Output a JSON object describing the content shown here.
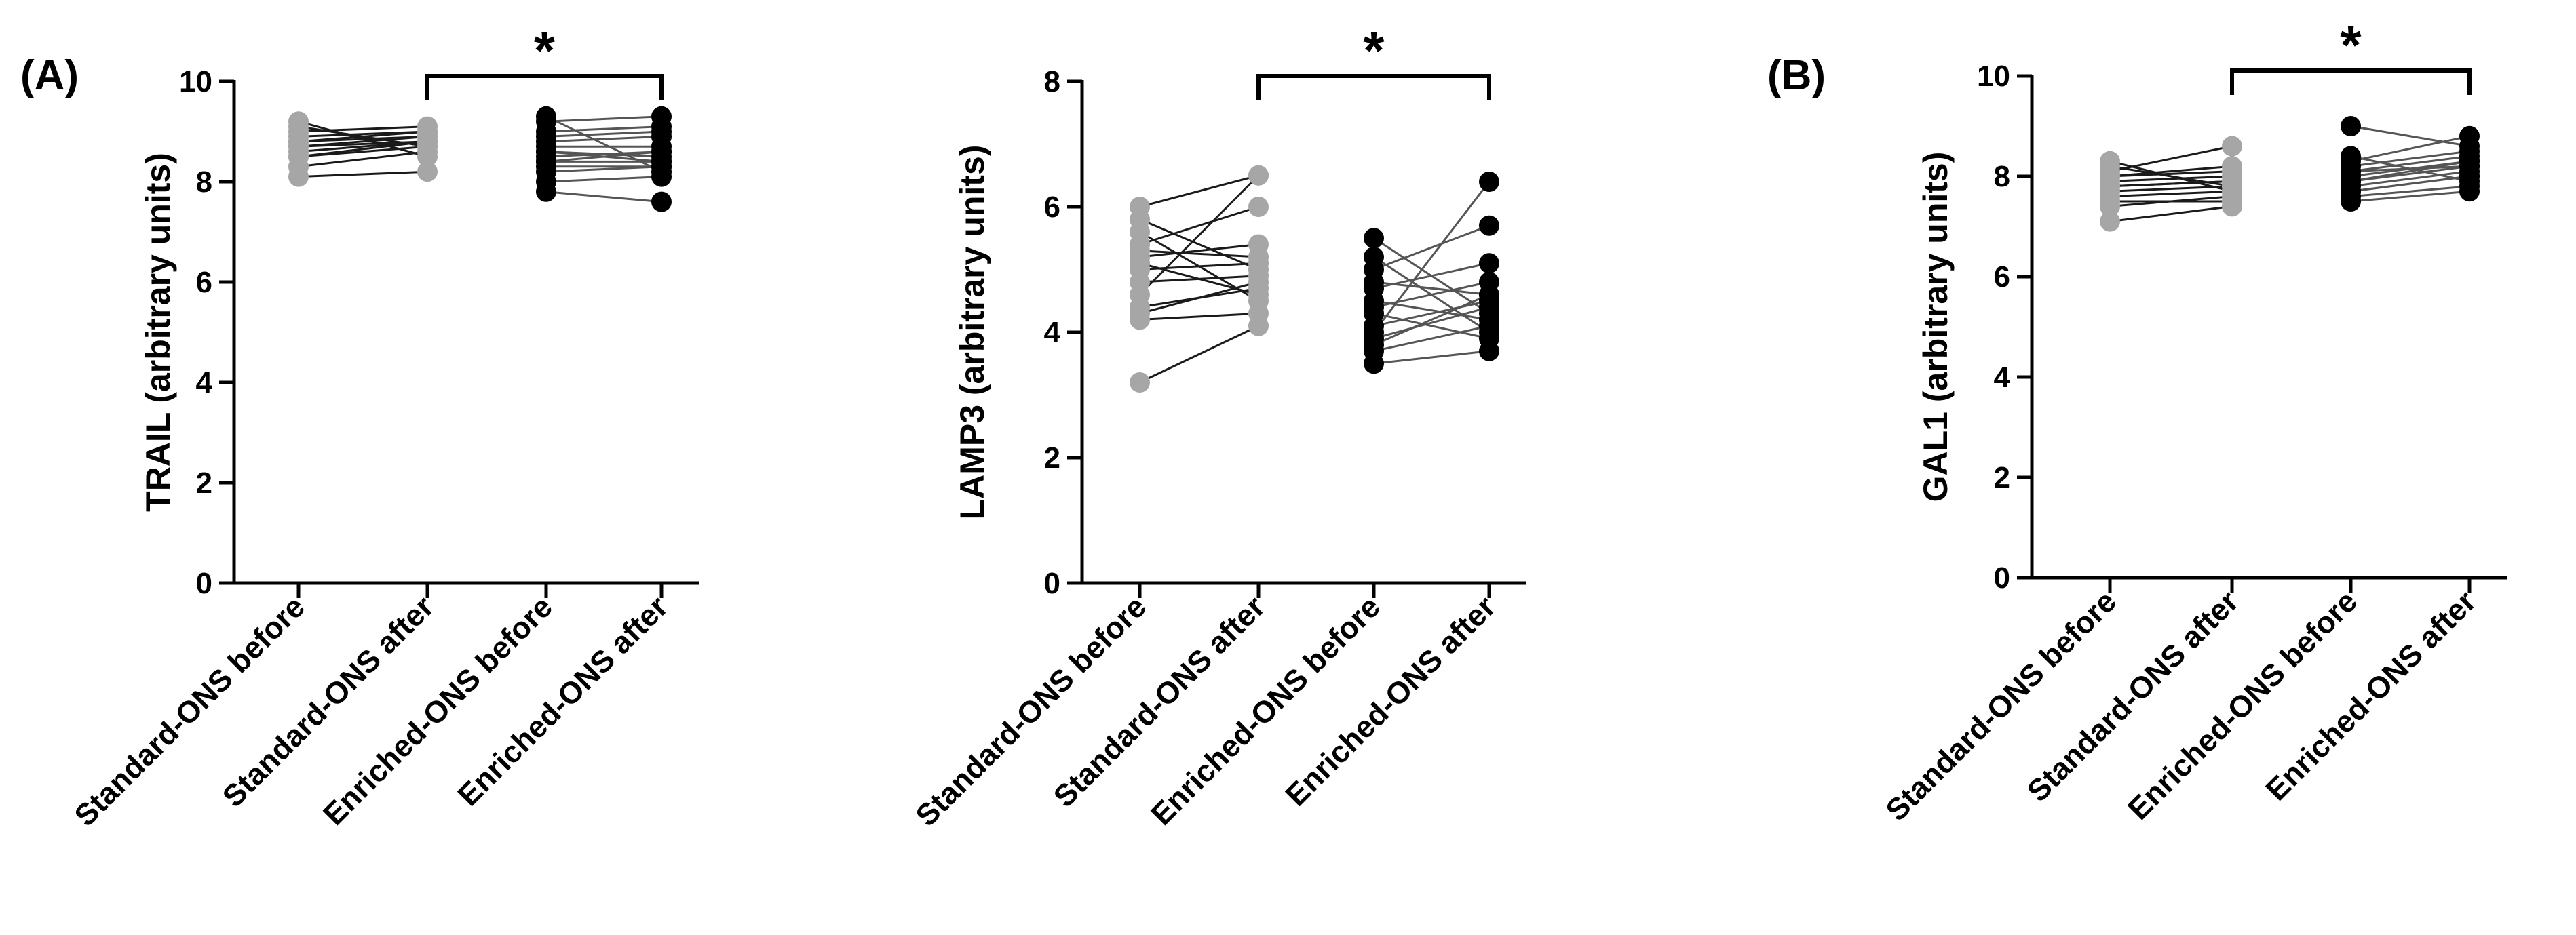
{
  "chart_data": [
    {
      "type": "scatter",
      "panel_label": "(A)",
      "ylabel": "TRAIL (arbitrary units)",
      "ylim": [
        0,
        10
      ],
      "yticks": [
        0,
        2,
        4,
        6,
        8,
        10
      ],
      "categories": [
        "Standard-ONS before",
        "Standard-ONS after",
        "Enriched-ONS before",
        "Enriched-ONS after"
      ],
      "significance": {
        "from": 1,
        "to": 3,
        "label": "*"
      },
      "groups": [
        {
          "name": "Standard-ONS",
          "color": "#a6a6a6",
          "line_color": "#1a1a1a",
          "before": [
            8.1,
            8.3,
            8.5,
            8.6,
            8.7,
            8.7,
            8.8,
            8.9,
            9.0,
            9.1,
            9.2,
            8.8,
            8.5
          ],
          "after": [
            8.2,
            8.6,
            8.7,
            8.8,
            8.8,
            8.9,
            9.0,
            9.0,
            9.1,
            8.7,
            8.5,
            8.9,
            8.8
          ]
        },
        {
          "name": "Enriched-ONS",
          "color": "#000000",
          "line_color": "#555555",
          "before": [
            7.8,
            8.0,
            8.2,
            8.3,
            8.4,
            8.5,
            8.6,
            8.7,
            8.8,
            8.9,
            9.0,
            9.2,
            9.3,
            8.4,
            8.6
          ],
          "after": [
            7.6,
            8.1,
            8.3,
            8.3,
            8.4,
            8.6,
            8.5,
            8.7,
            8.9,
            9.0,
            9.1,
            9.3,
            8.2,
            8.6,
            8.4
          ]
        }
      ]
    },
    {
      "type": "scatter",
      "panel_label": "",
      "ylabel": "LAMP3 (arbitrary units)",
      "ylim": [
        0,
        8
      ],
      "yticks": [
        0,
        2,
        4,
        6,
        8
      ],
      "categories": [
        "Standard-ONS before",
        "Standard-ONS after",
        "Enriched-ONS before",
        "Enriched-ONS after"
      ],
      "significance": {
        "from": 1,
        "to": 3,
        "label": "*"
      },
      "groups": [
        {
          "name": "Standard-ONS",
          "color": "#a6a6a6",
          "line_color": "#1a1a1a",
          "before": [
            3.2,
            4.2,
            4.4,
            4.6,
            4.8,
            5.0,
            5.1,
            5.2,
            5.4,
            5.6,
            5.8,
            6.0,
            4.3,
            5.3
          ],
          "after": [
            4.1,
            4.3,
            4.7,
            6.5,
            4.9,
            5.1,
            4.6,
            5.4,
            6.0,
            4.5,
            5.0,
            6.5,
            4.8,
            5.2
          ]
        },
        {
          "name": "Enriched-ONS",
          "color": "#000000",
          "line_color": "#555555",
          "before": [
            3.5,
            3.7,
            3.9,
            4.0,
            4.1,
            4.3,
            4.5,
            4.7,
            4.8,
            5.0,
            5.2,
            5.5,
            3.8,
            4.4
          ],
          "after": [
            3.7,
            4.1,
            4.4,
            6.4,
            4.5,
            3.9,
            4.2,
            5.1,
            4.6,
            5.7,
            4.0,
            4.3,
            4.6,
            4.8
          ]
        }
      ]
    },
    {
      "type": "scatter",
      "panel_label": "(B)",
      "ylabel": "GAL1 (arbitrary units)",
      "ylim": [
        0,
        10
      ],
      "yticks": [
        0,
        2,
        4,
        6,
        8,
        10
      ],
      "categories": [
        "Standard-ONS before",
        "Standard-ONS after",
        "Enriched-ONS before",
        "Enriched-ONS after"
      ],
      "significance": {
        "from": 1,
        "to": 3,
        "label": "*"
      },
      "groups": [
        {
          "name": "Standard-ONS",
          "color": "#a6a6a6",
          "line_color": "#1a1a1a",
          "before": [
            7.1,
            7.4,
            7.6,
            7.7,
            7.8,
            7.9,
            8.0,
            8.1,
            8.2,
            8.3,
            7.5,
            7.8,
            8.0
          ],
          "after": [
            7.4,
            7.6,
            7.7,
            7.8,
            7.9,
            8.0,
            8.1,
            8.6,
            7.8,
            7.7,
            7.5,
            7.9,
            8.2
          ]
        },
        {
          "name": "Enriched-ONS",
          "color": "#000000",
          "line_color": "#555555",
          "before": [
            7.5,
            7.6,
            7.7,
            7.8,
            7.9,
            8.0,
            8.1,
            8.2,
            8.3,
            8.4,
            9.0,
            7.7,
            8.1,
            7.9
          ],
          "after": [
            7.7,
            7.8,
            8.0,
            8.1,
            8.2,
            8.3,
            8.4,
            8.5,
            8.8,
            7.9,
            8.6,
            8.0,
            8.2,
            8.3
          ]
        }
      ]
    }
  ]
}
